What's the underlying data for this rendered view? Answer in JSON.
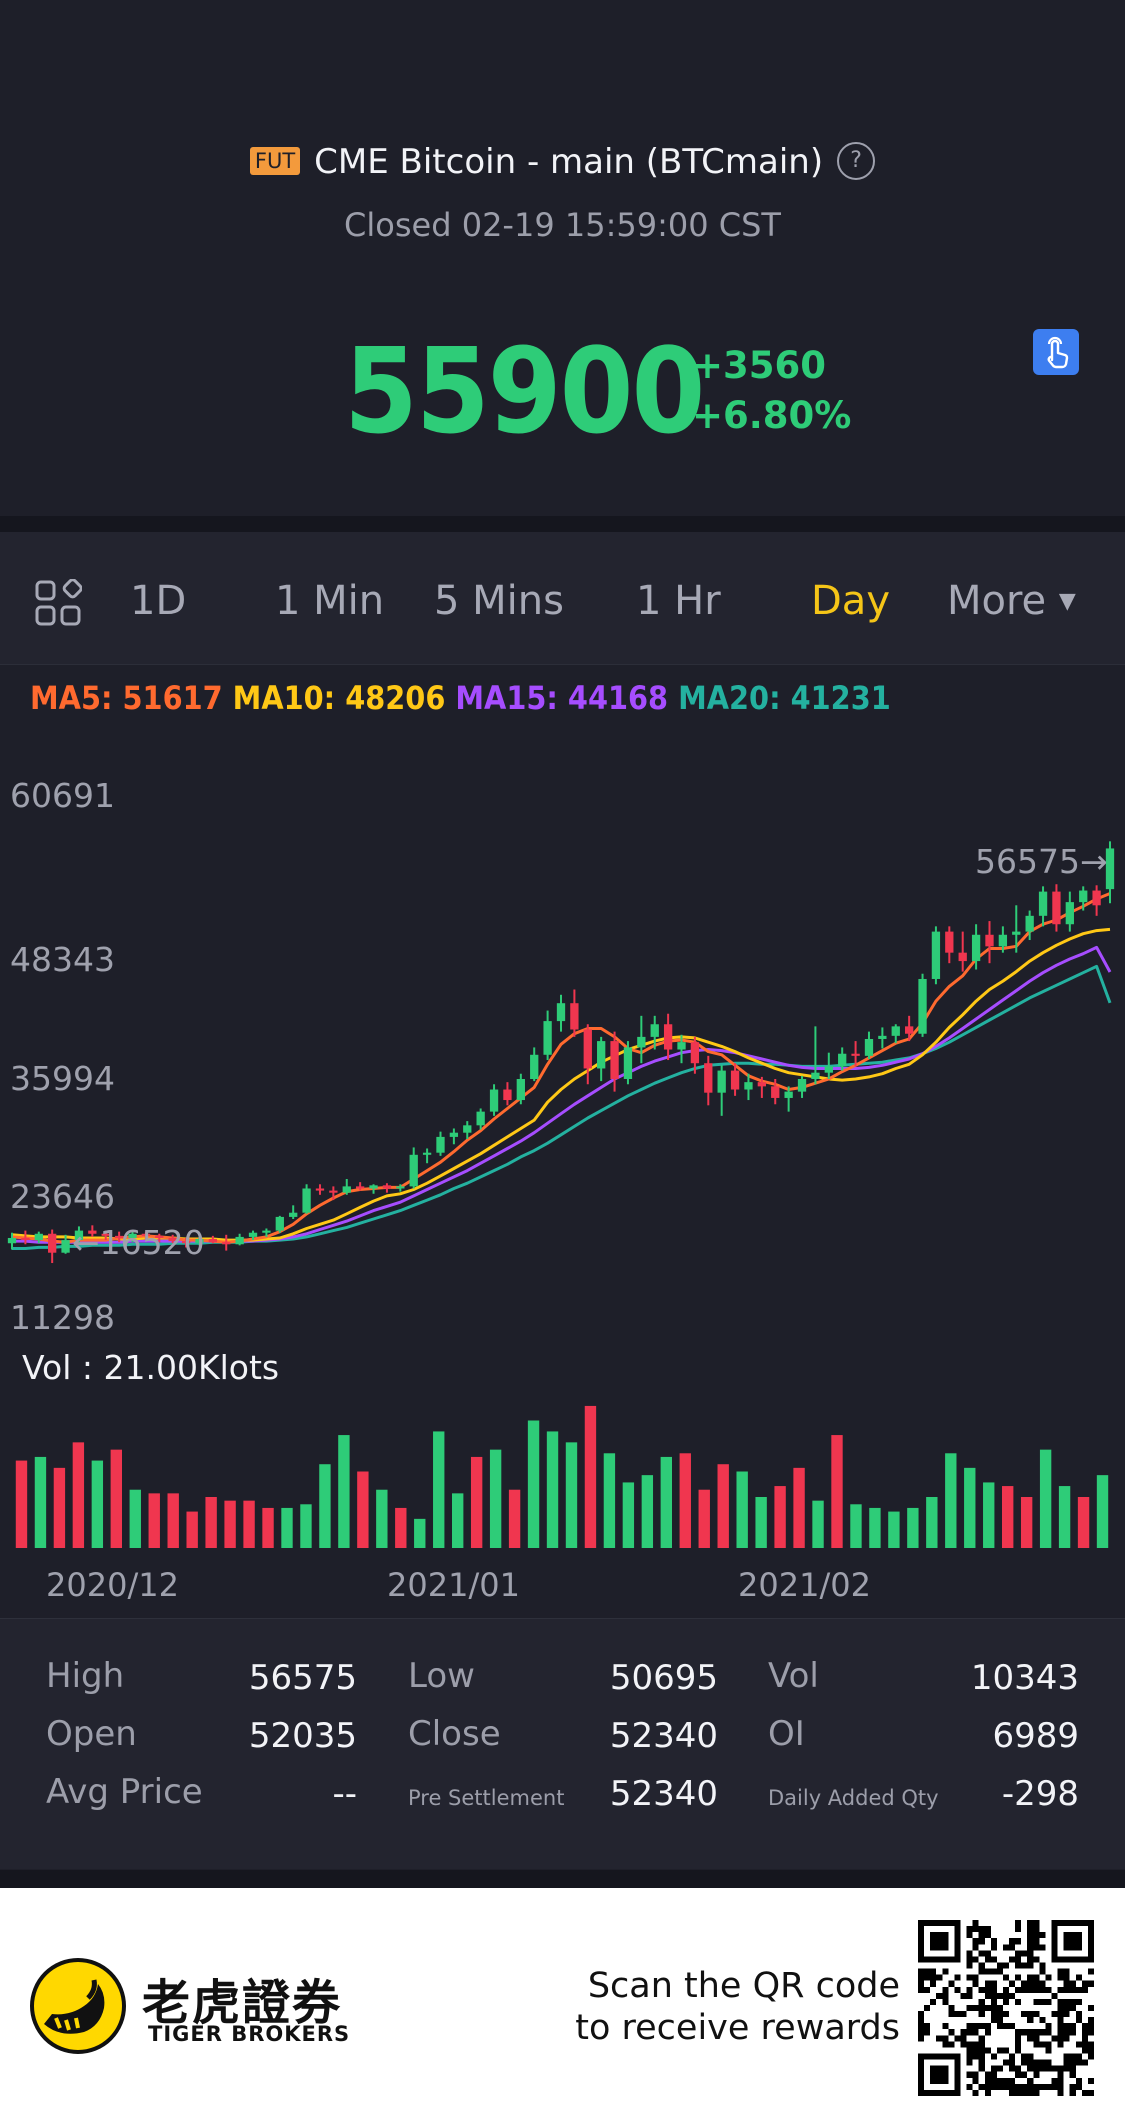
{
  "header": {
    "badge": "FUT",
    "title": "CME Bitcoin - main (BTCmain)",
    "help_glyph": "?",
    "status": "Closed 02-19 15:59:00 CST",
    "price": "55900",
    "change": "+3560",
    "change_pct": "+6.80%"
  },
  "tabs": [
    {
      "label": "1D",
      "active": false
    },
    {
      "label": "1 Min",
      "active": false
    },
    {
      "label": "5 Mins",
      "active": false
    },
    {
      "label": "1 Hr",
      "active": false
    },
    {
      "label": "Day",
      "active": true
    },
    {
      "label": "More",
      "active": false
    }
  ],
  "ma": {
    "ma5": "MA5: 51617",
    "ma10": "MA10: 48206",
    "ma15": "MA15: 44168",
    "ma20": "MA20: 41231"
  },
  "chart_labels": {
    "y_ticks": [
      "60691",
      "48343",
      "35994",
      "23646",
      "11298"
    ],
    "max_marker": "56575→",
    "min_marker": "←16520",
    "volume_label": "Vol  : 21.00Klots",
    "x_ticks": [
      "2020/12",
      "2021/01",
      "2021/02"
    ]
  },
  "colors": {
    "up": "#2ecc78",
    "down": "#f0364f",
    "ma5": "#ff6a2f",
    "ma10": "#ffc816",
    "ma15": "#a64dff",
    "ma20": "#24b1a0",
    "accent": "#f5c518"
  },
  "chart_data": {
    "type": "candlestick",
    "ylim": [
      11298,
      60691
    ],
    "y_ticks": [
      60691,
      48343,
      35994,
      23646,
      11298
    ],
    "x_ticks": [
      "2020/12",
      "2021/01",
      "2021/02"
    ],
    "max_marker": 56575,
    "min_marker": 16520,
    "candles": [
      {
        "o": 18400,
        "h": 19400,
        "l": 17800,
        "c": 18900
      },
      {
        "o": 18900,
        "h": 19600,
        "l": 18300,
        "c": 18700
      },
      {
        "o": 18700,
        "h": 19500,
        "l": 18400,
        "c": 19300
      },
      {
        "o": 19300,
        "h": 19700,
        "l": 16520,
        "c": 17500
      },
      {
        "o": 17500,
        "h": 19200,
        "l": 17400,
        "c": 18700
      },
      {
        "o": 18700,
        "h": 20000,
        "l": 18400,
        "c": 19600
      },
      {
        "o": 19600,
        "h": 20100,
        "l": 19000,
        "c": 19300
      },
      {
        "o": 19300,
        "h": 19600,
        "l": 18700,
        "c": 19100
      },
      {
        "o": 19100,
        "h": 19500,
        "l": 18500,
        "c": 18900
      },
      {
        "o": 18900,
        "h": 19500,
        "l": 18500,
        "c": 19300
      },
      {
        "o": 19300,
        "h": 19500,
        "l": 18700,
        "c": 19100
      },
      {
        "o": 19100,
        "h": 19300,
        "l": 18500,
        "c": 18900
      },
      {
        "o": 18900,
        "h": 19200,
        "l": 18400,
        "c": 18600
      },
      {
        "o": 18600,
        "h": 18900,
        "l": 18000,
        "c": 18400
      },
      {
        "o": 18400,
        "h": 19000,
        "l": 18200,
        "c": 18800
      },
      {
        "o": 18800,
        "h": 19100,
        "l": 18400,
        "c": 18500
      },
      {
        "o": 18500,
        "h": 19200,
        "l": 17700,
        "c": 18300
      },
      {
        "o": 18300,
        "h": 19300,
        "l": 18200,
        "c": 19000
      },
      {
        "o": 19000,
        "h": 19600,
        "l": 18700,
        "c": 19400
      },
      {
        "o": 19400,
        "h": 19800,
        "l": 19000,
        "c": 19600
      },
      {
        "o": 19600,
        "h": 21000,
        "l": 19400,
        "c": 20900
      },
      {
        "o": 20900,
        "h": 22000,
        "l": 20700,
        "c": 21300
      },
      {
        "o": 21300,
        "h": 24000,
        "l": 21200,
        "c": 23600
      },
      {
        "o": 23600,
        "h": 24000,
        "l": 23000,
        "c": 23400
      },
      {
        "o": 23400,
        "h": 23800,
        "l": 22500,
        "c": 23200
      },
      {
        "o": 23200,
        "h": 24500,
        "l": 23000,
        "c": 23800
      },
      {
        "o": 23800,
        "h": 24200,
        "l": 23400,
        "c": 23600
      },
      {
        "o": 23600,
        "h": 24000,
        "l": 23100,
        "c": 23900
      },
      {
        "o": 23900,
        "h": 24100,
        "l": 23200,
        "c": 23600
      },
      {
        "o": 23600,
        "h": 24000,
        "l": 23300,
        "c": 23800
      },
      {
        "o": 23800,
        "h": 27500,
        "l": 23600,
        "c": 26800
      },
      {
        "o": 26800,
        "h": 27400,
        "l": 26000,
        "c": 27000
      },
      {
        "o": 27000,
        "h": 29000,
        "l": 26700,
        "c": 28500
      },
      {
        "o": 28500,
        "h": 29300,
        "l": 27800,
        "c": 28900
      },
      {
        "o": 28900,
        "h": 30000,
        "l": 28300,
        "c": 29600
      },
      {
        "o": 29600,
        "h": 31200,
        "l": 29200,
        "c": 30900
      },
      {
        "o": 30900,
        "h": 33500,
        "l": 30500,
        "c": 33000
      },
      {
        "o": 33000,
        "h": 33700,
        "l": 31500,
        "c": 32000
      },
      {
        "o": 32000,
        "h": 34500,
        "l": 31600,
        "c": 34000
      },
      {
        "o": 34000,
        "h": 37000,
        "l": 33800,
        "c": 36300
      },
      {
        "o": 36300,
        "h": 40500,
        "l": 35800,
        "c": 39500
      },
      {
        "o": 39500,
        "h": 42000,
        "l": 38500,
        "c": 41200
      },
      {
        "o": 41200,
        "h": 42500,
        "l": 38000,
        "c": 38700
      },
      {
        "o": 38700,
        "h": 39200,
        "l": 33500,
        "c": 35000
      },
      {
        "o": 35000,
        "h": 38000,
        "l": 33800,
        "c": 37600
      },
      {
        "o": 37600,
        "h": 38500,
        "l": 32800,
        "c": 34000
      },
      {
        "o": 34000,
        "h": 37600,
        "l": 33500,
        "c": 37000
      },
      {
        "o": 37000,
        "h": 40000,
        "l": 35500,
        "c": 38000
      },
      {
        "o": 38000,
        "h": 40000,
        "l": 36800,
        "c": 39200
      },
      {
        "o": 39200,
        "h": 40200,
        "l": 35800,
        "c": 36800
      },
      {
        "o": 36800,
        "h": 38200,
        "l": 35500,
        "c": 37500
      },
      {
        "o": 37500,
        "h": 38000,
        "l": 34500,
        "c": 35500
      },
      {
        "o": 35500,
        "h": 36200,
        "l": 31500,
        "c": 32700
      },
      {
        "o": 32700,
        "h": 35300,
        "l": 30500,
        "c": 34800
      },
      {
        "o": 34800,
        "h": 35500,
        "l": 32400,
        "c": 33000
      },
      {
        "o": 33000,
        "h": 34500,
        "l": 32000,
        "c": 33700
      },
      {
        "o": 33700,
        "h": 34200,
        "l": 32200,
        "c": 33300
      },
      {
        "o": 33300,
        "h": 34000,
        "l": 31600,
        "c": 32200
      },
      {
        "o": 32200,
        "h": 33300,
        "l": 30900,
        "c": 32800
      },
      {
        "o": 32800,
        "h": 34300,
        "l": 32200,
        "c": 34000
      },
      {
        "o": 34000,
        "h": 39000,
        "l": 33500,
        "c": 34600
      },
      {
        "o": 34600,
        "h": 36500,
        "l": 34000,
        "c": 35200
      },
      {
        "o": 35200,
        "h": 37000,
        "l": 34800,
        "c": 36400
      },
      {
        "o": 36400,
        "h": 37600,
        "l": 35200,
        "c": 36200
      },
      {
        "o": 36200,
        "h": 38500,
        "l": 35900,
        "c": 37800
      },
      {
        "o": 37800,
        "h": 38900,
        "l": 36900,
        "c": 38100
      },
      {
        "o": 38100,
        "h": 39200,
        "l": 37400,
        "c": 39000
      },
      {
        "o": 39000,
        "h": 40000,
        "l": 37600,
        "c": 38300
      },
      {
        "o": 38300,
        "h": 44000,
        "l": 38000,
        "c": 43500
      },
      {
        "o": 43500,
        "h": 48500,
        "l": 43000,
        "c": 48000
      },
      {
        "o": 48000,
        "h": 48500,
        "l": 45000,
        "c": 46000
      },
      {
        "o": 46000,
        "h": 48000,
        "l": 44200,
        "c": 45200
      },
      {
        "o": 45200,
        "h": 48700,
        "l": 44400,
        "c": 47700
      },
      {
        "o": 47700,
        "h": 49000,
        "l": 45000,
        "c": 46600
      },
      {
        "o": 46600,
        "h": 48500,
        "l": 46000,
        "c": 47700
      },
      {
        "o": 47700,
        "h": 50500,
        "l": 46000,
        "c": 48000
      },
      {
        "o": 48000,
        "h": 50000,
        "l": 47200,
        "c": 49500
      },
      {
        "o": 49500,
        "h": 52300,
        "l": 48500,
        "c": 51800
      },
      {
        "o": 51800,
        "h": 52500,
        "l": 48000,
        "c": 48700
      },
      {
        "o": 48700,
        "h": 51800,
        "l": 48000,
        "c": 50800
      },
      {
        "o": 50800,
        "h": 52300,
        "l": 50000,
        "c": 51900
      },
      {
        "o": 51900,
        "h": 52400,
        "l": 49500,
        "c": 50500
      },
      {
        "o": 52035,
        "h": 56575,
        "l": 50695,
        "c": 55900
      }
    ],
    "ma5": [
      19000,
      18900,
      18800,
      18600,
      18500,
      18700,
      18700,
      18700,
      18900,
      19000,
      19100,
      19000,
      18900,
      18700,
      18700,
      18600,
      18500,
      18600,
      18800,
      19000,
      19500,
      20200,
      21200,
      22000,
      22700,
      23300,
      23500,
      23600,
      23700,
      23700,
      24500,
      25300,
      26100,
      27100,
      28200,
      29100,
      30200,
      31200,
      32200,
      33200,
      35400,
      37300,
      38300,
      38800,
      38800,
      38000,
      36900,
      36500,
      37200,
      37600,
      37700,
      37500,
      36600,
      36300,
      35300,
      34300,
      33800,
      33500,
      33000,
      33200,
      33600,
      34000,
      34700,
      35300,
      36000,
      36700,
      37400,
      37800,
      39300,
      41400,
      42800,
      43800,
      45400,
      46400,
      46400,
      46600,
      48000,
      48700,
      49100,
      49800,
      50400,
      51100,
      51617
    ],
    "ma10": [
      19200,
      19100,
      19000,
      19000,
      19000,
      18900,
      18900,
      18900,
      18800,
      18800,
      18900,
      18900,
      18900,
      18800,
      18800,
      18800,
      18700,
      18700,
      18700,
      18800,
      18900,
      19300,
      19800,
      20200,
      20600,
      21200,
      21800,
      22400,
      22900,
      23100,
      23500,
      24100,
      24800,
      25500,
      26200,
      26900,
      27700,
      28500,
      29300,
      30100,
      31800,
      33000,
      34000,
      34800,
      35600,
      36200,
      36800,
      37200,
      37600,
      37900,
      38000,
      37900,
      37500,
      37100,
      36600,
      36000,
      35500,
      35000,
      34600,
      34400,
      34200,
      34000,
      33900,
      34000,
      34200,
      34500,
      35000,
      35400,
      36300,
      37500,
      38900,
      40100,
      41400,
      42500,
      43300,
      44200,
      45200,
      46000,
      46700,
      47300,
      47800,
      48100,
      48206
    ],
    "ma15": [
      18600,
      18600,
      18500,
      18500,
      18500,
      18500,
      18500,
      18500,
      18500,
      18600,
      18600,
      18600,
      18600,
      18600,
      18600,
      18600,
      18600,
      18600,
      18600,
      18700,
      18800,
      19000,
      19300,
      19700,
      20100,
      20500,
      21000,
      21500,
      21900,
      22300,
      22900,
      23500,
      24100,
      24700,
      25300,
      26000,
      26700,
      27400,
      28100,
      28900,
      29800,
      30700,
      31600,
      32400,
      33200,
      34000,
      34600,
      35200,
      35700,
      36100,
      36500,
      36700,
      36800,
      36700,
      36500,
      36200,
      35900,
      35600,
      35300,
      35100,
      35000,
      35000,
      35000,
      35000,
      35100,
      35300,
      35600,
      35900,
      36400,
      37100,
      37900,
      38800,
      39700,
      40600,
      41500,
      42400,
      43300,
      44100,
      44800,
      45400,
      45900,
      46500,
      44168
    ],
    "ma20": [
      17900,
      17900,
      18000,
      18000,
      18100,
      18100,
      18200,
      18200,
      18200,
      18300,
      18300,
      18300,
      18400,
      18400,
      18400,
      18500,
      18500,
      18500,
      18600,
      18600,
      18700,
      18800,
      19000,
      19300,
      19600,
      19900,
      20300,
      20700,
      21100,
      21500,
      22000,
      22500,
      23000,
      23600,
      24100,
      24700,
      25300,
      25900,
      26600,
      27200,
      27900,
      28700,
      29500,
      30300,
      31000,
      31700,
      32400,
      33000,
      33600,
      34100,
      34600,
      35000,
      35300,
      35400,
      35500,
      35500,
      35400,
      35400,
      35300,
      35200,
      35200,
      35200,
      35300,
      35400,
      35500,
      35600,
      35800,
      36000,
      36400,
      36900,
      37500,
      38200,
      38900,
      39600,
      40300,
      41000,
      41700,
      42300,
      42900,
      43500,
      44100,
      44700,
      41231
    ],
    "volume": [
      12.0,
      12.5,
      11.0,
      14.5,
      12.0,
      13.5,
      8.0,
      7.5,
      7.5,
      5.0,
      7.0,
      6.5,
      6.5,
      5.5,
      5.5,
      6.0,
      11.5,
      15.5,
      10.5,
      8.0,
      5.5,
      4.0,
      16.0,
      7.5,
      12.5,
      13.5,
      8.0,
      17.5,
      16.0,
      14.5,
      19.5,
      13.0,
      9.0,
      10.0,
      12.5,
      13.0,
      8.0,
      11.5,
      10.5,
      7.0,
      8.5,
      11.0,
      6.5,
      15.5,
      6.0,
      5.5,
      5.0,
      5.5,
      7.0,
      13.0,
      11.0,
      9.0,
      8.5,
      7.0,
      13.5,
      8.5,
      7.0,
      10.0
    ],
    "volume_up": [
      false,
      true,
      false,
      false,
      true,
      false,
      true,
      false,
      false,
      false,
      false,
      false,
      false,
      false,
      true,
      true,
      true,
      true,
      false,
      true,
      false,
      true,
      true,
      true,
      false,
      true,
      false,
      true,
      true,
      true,
      false,
      true,
      true,
      true,
      true,
      false,
      false,
      false,
      true,
      true,
      false,
      false,
      true,
      false,
      true,
      true,
      true,
      true,
      true,
      true,
      true,
      true,
      false,
      false,
      true,
      true,
      false,
      true
    ],
    "volume_max_klots": 21.0
  },
  "stats": {
    "rows": [
      [
        {
          "label": "High",
          "value": "56575",
          "small": false
        },
        {
          "label": "Low",
          "value": "50695",
          "small": false
        },
        {
          "label": "Vol",
          "value": "10343",
          "small": false
        }
      ],
      [
        {
          "label": "Open",
          "value": "52035",
          "small": false
        },
        {
          "label": "Close",
          "value": "52340",
          "small": false
        },
        {
          "label": "OI",
          "value": "6989",
          "small": false
        }
      ],
      [
        {
          "label": "Avg Price",
          "value": "--",
          "small": false
        },
        {
          "label": "Pre Settlement",
          "value": "52340",
          "small": true
        },
        {
          "label": "Daily Added Qty",
          "value": "-298",
          "small": true
        }
      ]
    ]
  },
  "footer": {
    "brand_cn": "老虎證券",
    "brand_en": "TIGER BROKERS",
    "promo_line1": "Scan the QR code",
    "promo_line2": "to receive rewards"
  }
}
